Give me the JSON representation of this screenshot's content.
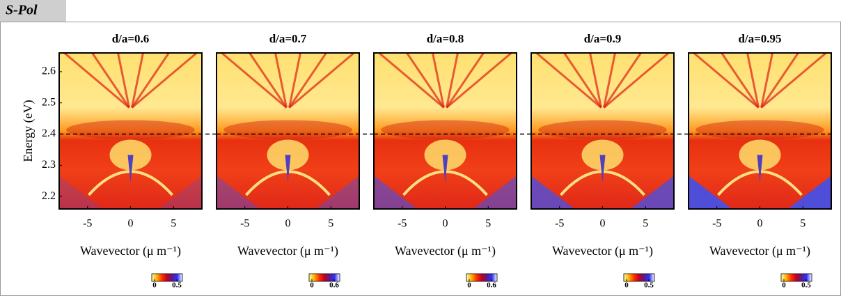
{
  "header": "S-Pol",
  "chart_data": [
    {
      "type": "heatmap",
      "title": "d/a=0.6",
      "xlabel": "Wavevector (μ m⁻¹)",
      "ylabel": "Energy (eV)",
      "xlim": [
        -8.3,
        8.3
      ],
      "xticks": [
        -5,
        0,
        5
      ],
      "ylim": [
        2.16,
        2.66
      ],
      "yticks": [
        2.2,
        2.3,
        2.4,
        2.5,
        2.6
      ],
      "hline": 2.4,
      "clim": [
        0,
        0.5
      ],
      "cticks": [
        0,
        0.5
      ],
      "colormap": [
        "#ffffa0",
        "#ffb000",
        "#ff3000",
        "#c00020",
        "#5a1a8a",
        "#3030ff",
        "#ffffff"
      ]
    },
    {
      "type": "heatmap",
      "title": "d/a=0.7",
      "xlabel": "Wavevector (μ m⁻¹)",
      "xlim": [
        -8.3,
        8.3
      ],
      "xticks": [
        -5,
        0,
        5
      ],
      "ylim": [
        2.16,
        2.66
      ],
      "hline": 2.4,
      "clim": [
        0,
        0.6
      ],
      "cticks": [
        0,
        0.6
      ],
      "colormap": [
        "#ffffa0",
        "#ffb000",
        "#ff3000",
        "#c00020",
        "#5a1a8a",
        "#3030ff",
        "#ffffff"
      ]
    },
    {
      "type": "heatmap",
      "title": "d/a=0.8",
      "xlabel": "Wavevector (μ m⁻¹)",
      "xlim": [
        -8.3,
        8.3
      ],
      "xticks": [
        -5,
        0,
        5
      ],
      "ylim": [
        2.16,
        2.66
      ],
      "hline": 2.4,
      "clim": [
        0,
        0.6
      ],
      "cticks": [
        0,
        0.6
      ],
      "colormap": [
        "#ffffa0",
        "#ffb000",
        "#ff3000",
        "#c00020",
        "#5a1a8a",
        "#3030ff",
        "#ffffff"
      ]
    },
    {
      "type": "heatmap",
      "title": "d/a=0.9",
      "xlabel": "Wavevector (μ m⁻¹)",
      "xlim": [
        -8.3,
        8.3
      ],
      "xticks": [
        -5,
        0,
        5
      ],
      "ylim": [
        2.16,
        2.66
      ],
      "hline": 2.4,
      "clim": [
        0,
        0.5
      ],
      "cticks": [
        0,
        0.5
      ],
      "colormap": [
        "#ffffa0",
        "#ffb000",
        "#ff3000",
        "#c00020",
        "#5a1a8a",
        "#3030ff",
        "#ffffff"
      ]
    },
    {
      "type": "heatmap",
      "title": "d/a=0.95",
      "xlabel": "Wavevector (μ m⁻¹)",
      "xlim": [
        -8.3,
        8.3
      ],
      "xticks": [
        -5,
        0,
        5
      ],
      "ylim": [
        2.16,
        2.66
      ],
      "hline": 2.4,
      "clim": [
        0,
        0.5
      ],
      "cticks": [
        0,
        0.5
      ],
      "colormap": [
        "#ffffa0",
        "#ffb000",
        "#ff3000",
        "#c00020",
        "#5a1a8a",
        "#3030ff",
        "#ffffff"
      ]
    }
  ]
}
